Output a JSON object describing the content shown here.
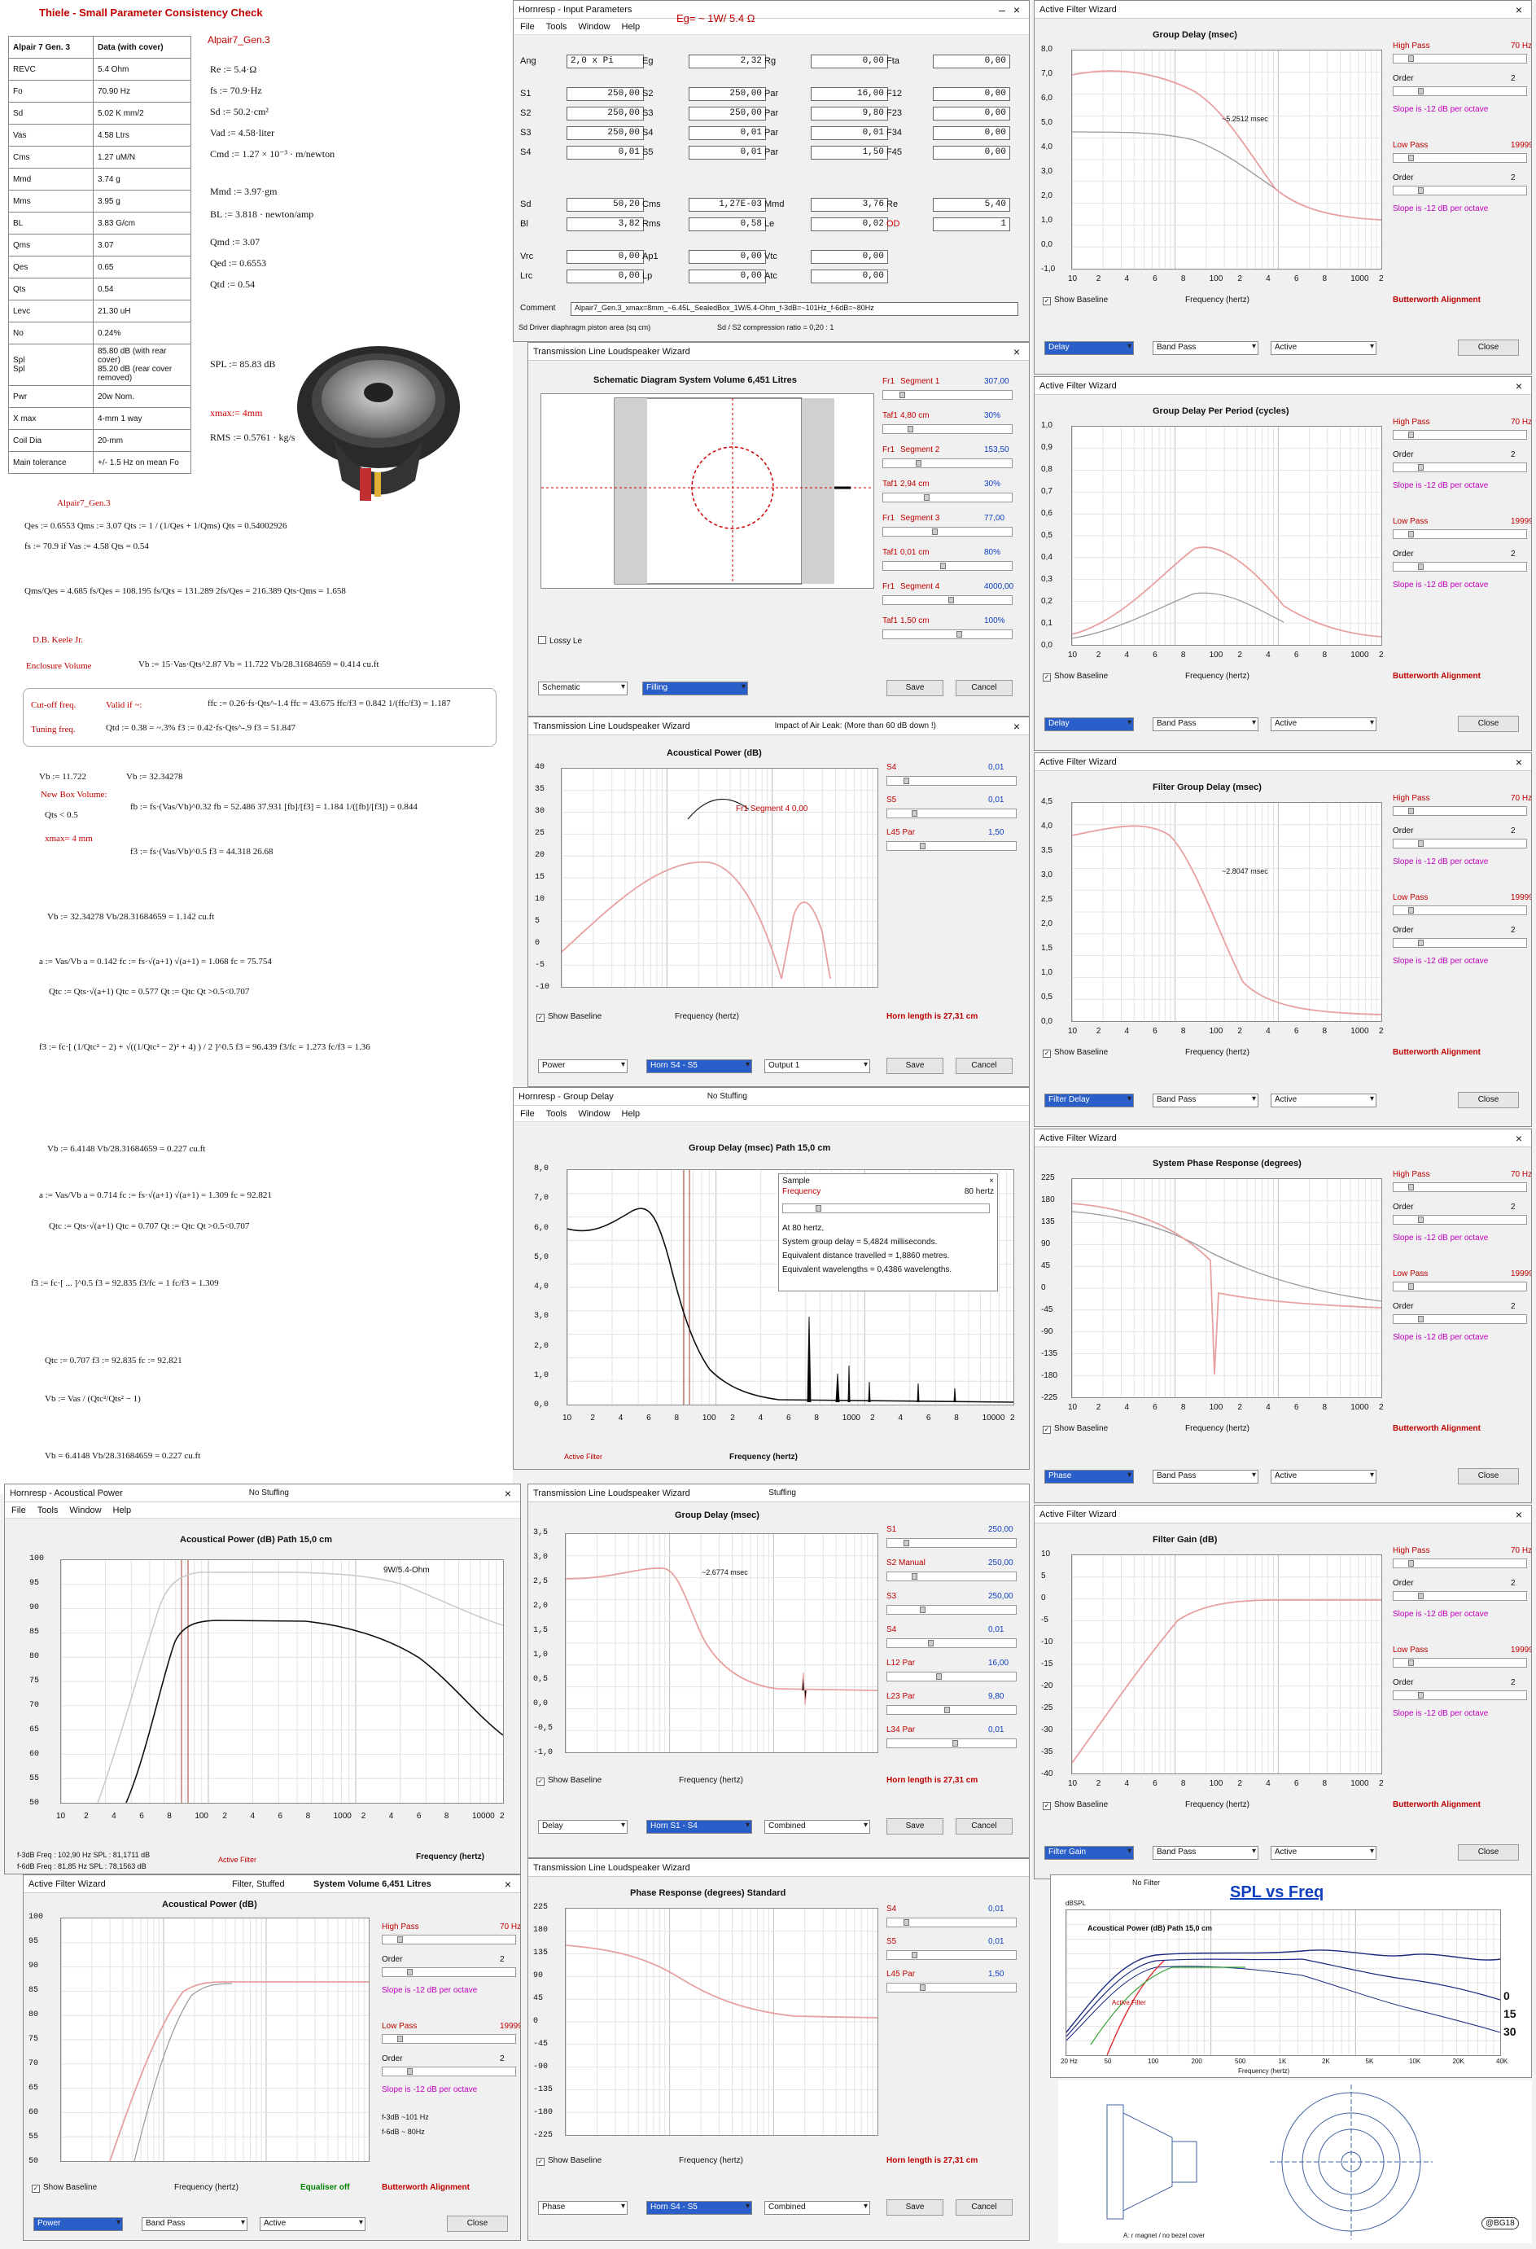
{
  "thiele": {
    "title": "Thiele - Small Parameter Consistency Check",
    "header": [
      "Alpair 7 Gen. 3",
      "Data (with cover)"
    ],
    "rows": [
      [
        "REVC",
        "5.4 Ohm"
      ],
      [
        "Fo",
        "70.90 Hz"
      ],
      [
        "Sd",
        "5.02 K mm/2"
      ],
      [
        "Vas",
        "4.58 Ltrs"
      ],
      [
        "Cms",
        "1.27 uM/N"
      ],
      [
        "Mmd",
        "3.74 g"
      ],
      [
        "Mms",
        "3.95 g"
      ],
      [
        "BL",
        "3.83 G/cm"
      ],
      [
        "Qms",
        "3.07"
      ],
      [
        "Qes",
        "0.65"
      ],
      [
        "Qts",
        "0.54"
      ],
      [
        "Levc",
        "21.30 uH"
      ],
      [
        "No",
        "0.24%"
      ],
      [
        "Spl\nSpl",
        "85.80 dB (with rear cover)\n85.20 dB (rear cover removed)"
      ],
      [
        "Pwr",
        "20w Nom."
      ],
      [
        "X max",
        "4-mm 1 way"
      ],
      [
        "Coil Dia",
        "20-mm"
      ],
      [
        "Main tolerance",
        "+/- 1.5 Hz on mean Fo"
      ]
    ],
    "model_label": "Alpair7_Gen.3",
    "params": [
      "Re := 5.4·Ω",
      "fs := 70.9·Hz",
      "Sd := 50.2·cm²",
      "Vad := 4.58·liter",
      "Cmd := 1.27 × 10⁻³ · m/newton",
      "Mmd := 3.97·gm",
      "BL := 3.818 · newton/amp",
      "Qmd := 3.07",
      "Qed := 0.6553",
      "Qtd := 0.54",
      "SPL := 85.83 dB",
      "xmax:= 4mm",
      "RMS := 0.5761 · kg/s"
    ]
  },
  "calc": {
    "model": "Alpair7_Gen.3",
    "l1": "Qes := 0.6553     Qms := 3.07     Qts := 1 / (1/Qes + 1/Qms)     Qts = 0.54002926",
    "l2": "fs := 70.9     if   Vas := 4.58     Qts = 0.54",
    "l3": "Qms/Qes = 4.685     fs/Qes = 108.195     fs/Qts = 131.289     2fs/Qes = 216.389     Qts·Qms = 1.658",
    "keele": "D.B. Keele Jr.",
    "encl": "Enclosure Volume",
    "vb1": "Vb := 15·Vas·Qts^2.87     Vb = 11.722     Vb/28.31684659 = 0.414  cu.ft",
    "cutoff": "Cut-off freq.",
    "valid": "Valid if ~:",
    "tuning": "Tuning freq.",
    "q1": "ffc := 0.26·fs·Qts^-1.4     ffc = 43.675     ffc/f3 = 0.842     1/(ffc/f3) = 1.187",
    "q2": "Qtd := 0.38 = ~.3%      f3 := 0.42·fs·Qts^-.9     f3 = 51.847",
    "vb2": "Vb := 11.722",
    "vb2b": "Vb := 32.34278",
    "newbox": "New Box Volume:",
    "qlt": "Qts < 0.5",
    "xmax": "xmax= 4  mm",
    "fb": "fb := fs·(Vas/Vb)^0.32     fb = 52.486  37.931     [fb]/[f3] = 1.184     1/([fb]/[f3]) = 0.844",
    "f3b": "f3 := fs·(Vas/Vb)^0.5     f3 = 44.318  26.68",
    "vb3": "Vb := 32.34278     Vb/28.31684659 = 1.142  cu.ft",
    "a1": "a := Vas/Vb     a = 0.142     fc := fs·√(a+1)     √(a+1) = 1.068     fc = 75.754",
    "qtc1": "Qtc := Qts·√(a+1)   Qtc = 0.577     Qt := Qtc   Qt >0.5<0.707",
    "f3c": "f3 := fc·[ (1/Qtc² − 2) + √((1/Qtc² − 2)² + 4) ) / 2 ]^0.5     f3 = 96.439     f3/fc = 1.273     fc/f3 = 1.36",
    "vb4": "Vb := 6.4148     Vb/28.31684659 = 0.227  cu.ft",
    "a2": "a := Vas/Vb     a = 0.714     fc := fs·√(a+1)     √(a+1) = 1.309     fc = 92.821",
    "qtc2": "Qtc := Qts·√(a+1)   Qtc = 0.707     Qt := Qtc   Qt >0.5<0.707",
    "f3d": "f3 := fc·[ ... ]^0.5     f3 = 92.835     f3/fc = 1     fc/f3 = 1.309",
    "fin1": "Qtc := 0.707     f3 := 92.835     fc := 92.821",
    "fin2": "Vb := Vas / (Qtc²/Qts² − 1)",
    "fin3": "Vb = 6.4148     Vb/28.31684659 = 0.227  cu.ft"
  },
  "input": {
    "title": "Hornresp - Input Parameters",
    "eg_note": "Eg= ~ 1W/ 5.4 Ω",
    "menu": [
      "File",
      "Tools",
      "Window",
      "Help"
    ],
    "fields": [
      [
        "Ang",
        "2,0 x Pi",
        "Eg",
        "2,32",
        "Rg",
        "0,00",
        "Fta",
        "0,00"
      ],
      [
        "S1",
        "250,00",
        "S2",
        "250,00",
        "Par",
        "16,00",
        "F12",
        "0,00"
      ],
      [
        "S2",
        "250,00",
        "S3",
        "250,00",
        "Par",
        "9,80",
        "F23",
        "0,00"
      ],
      [
        "S3",
        "250,00",
        "S4",
        "0,01",
        "Par",
        "0,01",
        "F34",
        "0,00"
      ],
      [
        "S4",
        "0,01",
        "S5",
        "0,01",
        "Par",
        "1,50",
        "F45",
        "0,00"
      ],
      [
        "Sd",
        "50,20",
        "Cms",
        "1,27E-03",
        "Mmd",
        "3,76",
        "Re",
        "5,40"
      ],
      [
        "Bl",
        "3,82",
        "Rms",
        "0,58",
        "Le",
        "0,02",
        "OD",
        "1"
      ],
      [
        "Vrc",
        "0,00",
        "Ap1",
        "0,00",
        "Vtc",
        "0,00",
        "",
        ""
      ],
      [
        "Lrc",
        "0,00",
        "Lp",
        "0,00",
        "Atc",
        "0,00",
        "",
        ""
      ]
    ],
    "comment_label": "Comment",
    "comment": "Alpair7_Gen.3_xmax=8mm_~6.45L_SealedBox_1W/5.4-Ohm_f-3dB=~101Hz_f-6dB=~80Hz",
    "status1": "Sd   Driver diaphragm piston area  (sq cm)",
    "status2": "Sd / S2 compression ratio = 0,20 : 1"
  },
  "schem": {
    "title": "Transmission Line Loudspeaker Wizard",
    "ctitle": "Schematic Diagram    System Volume 6,451 Litres",
    "sliders": [
      [
        "Fr1",
        "Segment 1",
        "307,00"
      ],
      [
        "Taf1",
        "4,80 cm",
        "30%"
      ],
      [
        "Fr1",
        "Segment 2",
        "153,50"
      ],
      [
        "Taf1",
        "2,94 cm",
        "30%"
      ],
      [
        "Fr1",
        "Segment 3",
        "77,00"
      ],
      [
        "Taf1",
        "0,01 cm",
        "80%"
      ],
      [
        "Fr1",
        "Segment 4",
        "4000,00"
      ],
      [
        "Taf1",
        "1,50 cm",
        "100%"
      ]
    ],
    "lossy": "Lossy Le",
    "dd1": "Schematic",
    "dd2": "Filling",
    "save": "Save",
    "cancel": "Cancel"
  },
  "tl_ap": {
    "title": "Transmission Line Loudspeaker Wizard",
    "extra": "Impact of Air Leak:  (More than 60 dB down !)",
    "ctitle": "Acoustical Power (dB)",
    "anno": "Fr1  Segment 4   0,00",
    "sliders": [
      [
        "S4",
        "0,01"
      ],
      [
        "S5",
        "0,01"
      ],
      [
        "L45 Par",
        "1,50"
      ]
    ],
    "yt": [
      "40",
      "35",
      "30",
      "25",
      "20",
      "15",
      "10",
      "5",
      "0",
      "-5",
      "-10"
    ],
    "base": "Show Baseline",
    "xlab": "Frequency (hertz)",
    "horn": "Horn length is 27,31 cm",
    "dd1": "Power",
    "dd2": "Horn S4 - S5",
    "dd3": "Output 1",
    "save": "Save",
    "cancel": "Cancel"
  },
  "gd_main": {
    "title": "Hornresp - Group Delay",
    "nostuff": "No Stuffing",
    "menu": [
      "File",
      "Tools",
      "Window",
      "Help"
    ],
    "ctitle": "Group Delay (msec)   Path 15,0 cm",
    "yt": [
      "8,0",
      "7,0",
      "6,0",
      "5,0",
      "4,0",
      "3,0",
      "2,0",
      "1,0",
      "0,0"
    ],
    "xt": [
      "10",
      "2",
      "4",
      "6",
      "8",
      "100",
      "2",
      "4",
      "6",
      "8",
      "1000",
      "2",
      "4",
      "6",
      "8",
      "10000",
      "2"
    ],
    "active": "Active Filter",
    "xlab": "Frequency (hertz)",
    "sample": {
      "title": "Sample",
      "freq_label": "Frequency",
      "freq": "80 hertz",
      "l1": "At 80 hertz,",
      "l2": "System group delay = 5,4824 milliseconds.",
      "l3": "Equivalent distance travelled = 1,8860 metres.",
      "l4": "Equivalent wavelengths = 0,4386 wavelengths."
    }
  },
  "ap_main": {
    "title": "Hornresp - Acoustical Power",
    "nostuff": "No Stuffing",
    "menu": [
      "File",
      "Tools",
      "Window",
      "Help"
    ],
    "ctitle": "Acoustical Power (dB)    Path 15,0 cm",
    "note": "9W/5.4-Ohm",
    "yt": [
      "100",
      "95",
      "90",
      "85",
      "80",
      "75",
      "70",
      "65",
      "60",
      "55",
      "50"
    ],
    "xt": [
      "10",
      "2",
      "4",
      "6",
      "8",
      "100",
      "2",
      "4",
      "6",
      "8",
      "1000",
      "2",
      "4",
      "6",
      "8",
      "10000",
      "2"
    ],
    "f3": "f-3dB  Freq : 102,90 Hz    SPL : 81,1711 dB",
    "f6": "f-6dB  Freq : 81,85 Hz    SPL : 78,1563 dB",
    "active": "Active Filter",
    "xlab": "Frequency (hertz)"
  },
  "tl_gd": {
    "title": "Transmission Line Loudspeaker Wizard",
    "stuff": "Stuffing",
    "ctitle": "Group Delay (msec)",
    "anno": "~2.6774 msec",
    "sliders": [
      [
        "S1",
        "250,00"
      ],
      [
        "S2 Manual",
        "250,00"
      ],
      [
        "S3",
        "250,00"
      ],
      [
        "S4",
        "0,01"
      ],
      [
        "L12 Par",
        "16,00"
      ],
      [
        "L23 Par",
        "9,80"
      ],
      [
        "L34 Par",
        "0,01"
      ]
    ],
    "yt": [
      "3,5",
      "3,0",
      "2,5",
      "2,0",
      "1,5",
      "1,0",
      "0,5",
      "0,0",
      "-0,5",
      "-1,0"
    ],
    "base": "Show Baseline",
    "xlab": "Frequency (hertz)",
    "horn": "Horn length is 27,31 cm",
    "dd1": "Delay",
    "dd2": "Horn S1 - S4",
    "dd3": "Combined",
    "save": "Save",
    "cancel": "Cancel"
  },
  "tl_ph": {
    "title": "Transmission Line Loudspeaker Wizard",
    "ctitle": "Phase Response (degrees)   Standard",
    "sliders": [
      [
        "S4",
        "0,01"
      ],
      [
        "S5",
        "0,01"
      ],
      [
        "L45 Par",
        "1,50"
      ]
    ],
    "yt": [
      "225",
      "180",
      "135",
      "90",
      "45",
      "0",
      "-45",
      "-90",
      "-135",
      "-180",
      "-225"
    ],
    "base": "Show Baseline",
    "xlab": "Frequency (hertz)",
    "horn": "Horn length is 27,31 cm",
    "dd1": "Phase",
    "dd2": "Horn S4 - S5",
    "dd3": "Combined",
    "save": "Save",
    "cancel": "Cancel"
  },
  "afw_bottom": {
    "title": "Active Filter Wizard",
    "extra": "Filter, Stuffed",
    "extra2": "System Volume 6,451 Litres",
    "ctitle": "Acoustical Power (dB)",
    "yt": [
      "100",
      "95",
      "90",
      "85",
      "80",
      "75",
      "70",
      "65",
      "60",
      "55",
      "50"
    ],
    "f3": "f-3dB  ~101 Hz",
    "f6": "f-6dB  ~ 80Hz",
    "eq": "Equaliser off",
    "dd1": "Power",
    "dd2": "Band Pass",
    "dd3": "Active",
    "close": "Close"
  },
  "filter_common": {
    "hp": "High Pass",
    "hp_val": "70 Hz",
    "order": "Order",
    "order_val": "2",
    "slope": "Slope is -12 dB per octave",
    "lp": "Low Pass",
    "lp_val": "19999 Hz",
    "base": "Show Baseline",
    "xlab": "Frequency (hertz)",
    "butter": "Butterworth Alignment",
    "dd2": "Band Pass",
    "dd3": "Active",
    "close": "Close",
    "xt": [
      "10",
      "2",
      "4",
      "6",
      "8",
      "100",
      "2",
      "4",
      "6",
      "8",
      "1000",
      "2"
    ]
  },
  "afw": [
    {
      "title": "Active Filter Wizard",
      "ctitle": "Group Delay (msec)",
      "anno": "~5.2512 msec",
      "dd1": "Delay",
      "yt": [
        "8,0",
        "7,0",
        "6,0",
        "5,0",
        "4,0",
        "3,0",
        "2,0",
        "1,0",
        "0,0",
        "-1,0"
      ]
    },
    {
      "title": "Active Filter Wizard",
      "ctitle": "Group Delay Per Period (cycles)",
      "anno": "",
      "dd1": "Delay",
      "yt": [
        "1,0",
        "0,9",
        "0,8",
        "0,7",
        "0,6",
        "0,5",
        "0,4",
        "0,3",
        "0,2",
        "0,1",
        "0,0"
      ]
    },
    {
      "title": "Active Filter Wizard",
      "ctitle": "Filter Group Delay (msec)",
      "anno": "~2.8047 msec",
      "dd1": "Filter Delay",
      "yt": [
        "4,5",
        "4,0",
        "3,5",
        "3,0",
        "2,5",
        "2,0",
        "1,5",
        "1,0",
        "0,5",
        "0,0"
      ]
    },
    {
      "title": "Active Filter Wizard",
      "ctitle": "System Phase Response (degrees)",
      "anno": "",
      "dd1": "Phase",
      "yt": [
        "225",
        "180",
        "135",
        "90",
        "45",
        "0",
        "-45",
        "-90",
        "-135",
        "-180",
        "-225"
      ]
    },
    {
      "title": "Active Filter Wizard",
      "ctitle": "Filter Gain (dB)",
      "anno": "",
      "dd1": "Filter Gain",
      "yt": [
        "10",
        "5",
        "0",
        "-5",
        "-10",
        "-15",
        "-20",
        "-25",
        "-30",
        "-35",
        "-40"
      ]
    }
  ],
  "splfreq": {
    "nofilter": "No Filter",
    "title": "SPL vs Freq",
    "db": "dBSPL",
    "ap": "Acoustical Power (dB)  Path 15,0 cm",
    "active": "Active Filter",
    "angles": [
      "0",
      "15",
      "30"
    ],
    "xt": [
      "20 Hz",
      "50",
      "100",
      "200",
      "500",
      "1K",
      "2K",
      "5K",
      "10K",
      "20K",
      "40K"
    ],
    "yt": [
      "110",
      "100",
      "90",
      "80",
      "70",
      "60",
      "50",
      "40"
    ],
    "xlab": "Frequency (hertz)"
  },
  "drawing": {
    "note": "A: r magnet / no bezel cover",
    "logo": "@BG18"
  }
}
